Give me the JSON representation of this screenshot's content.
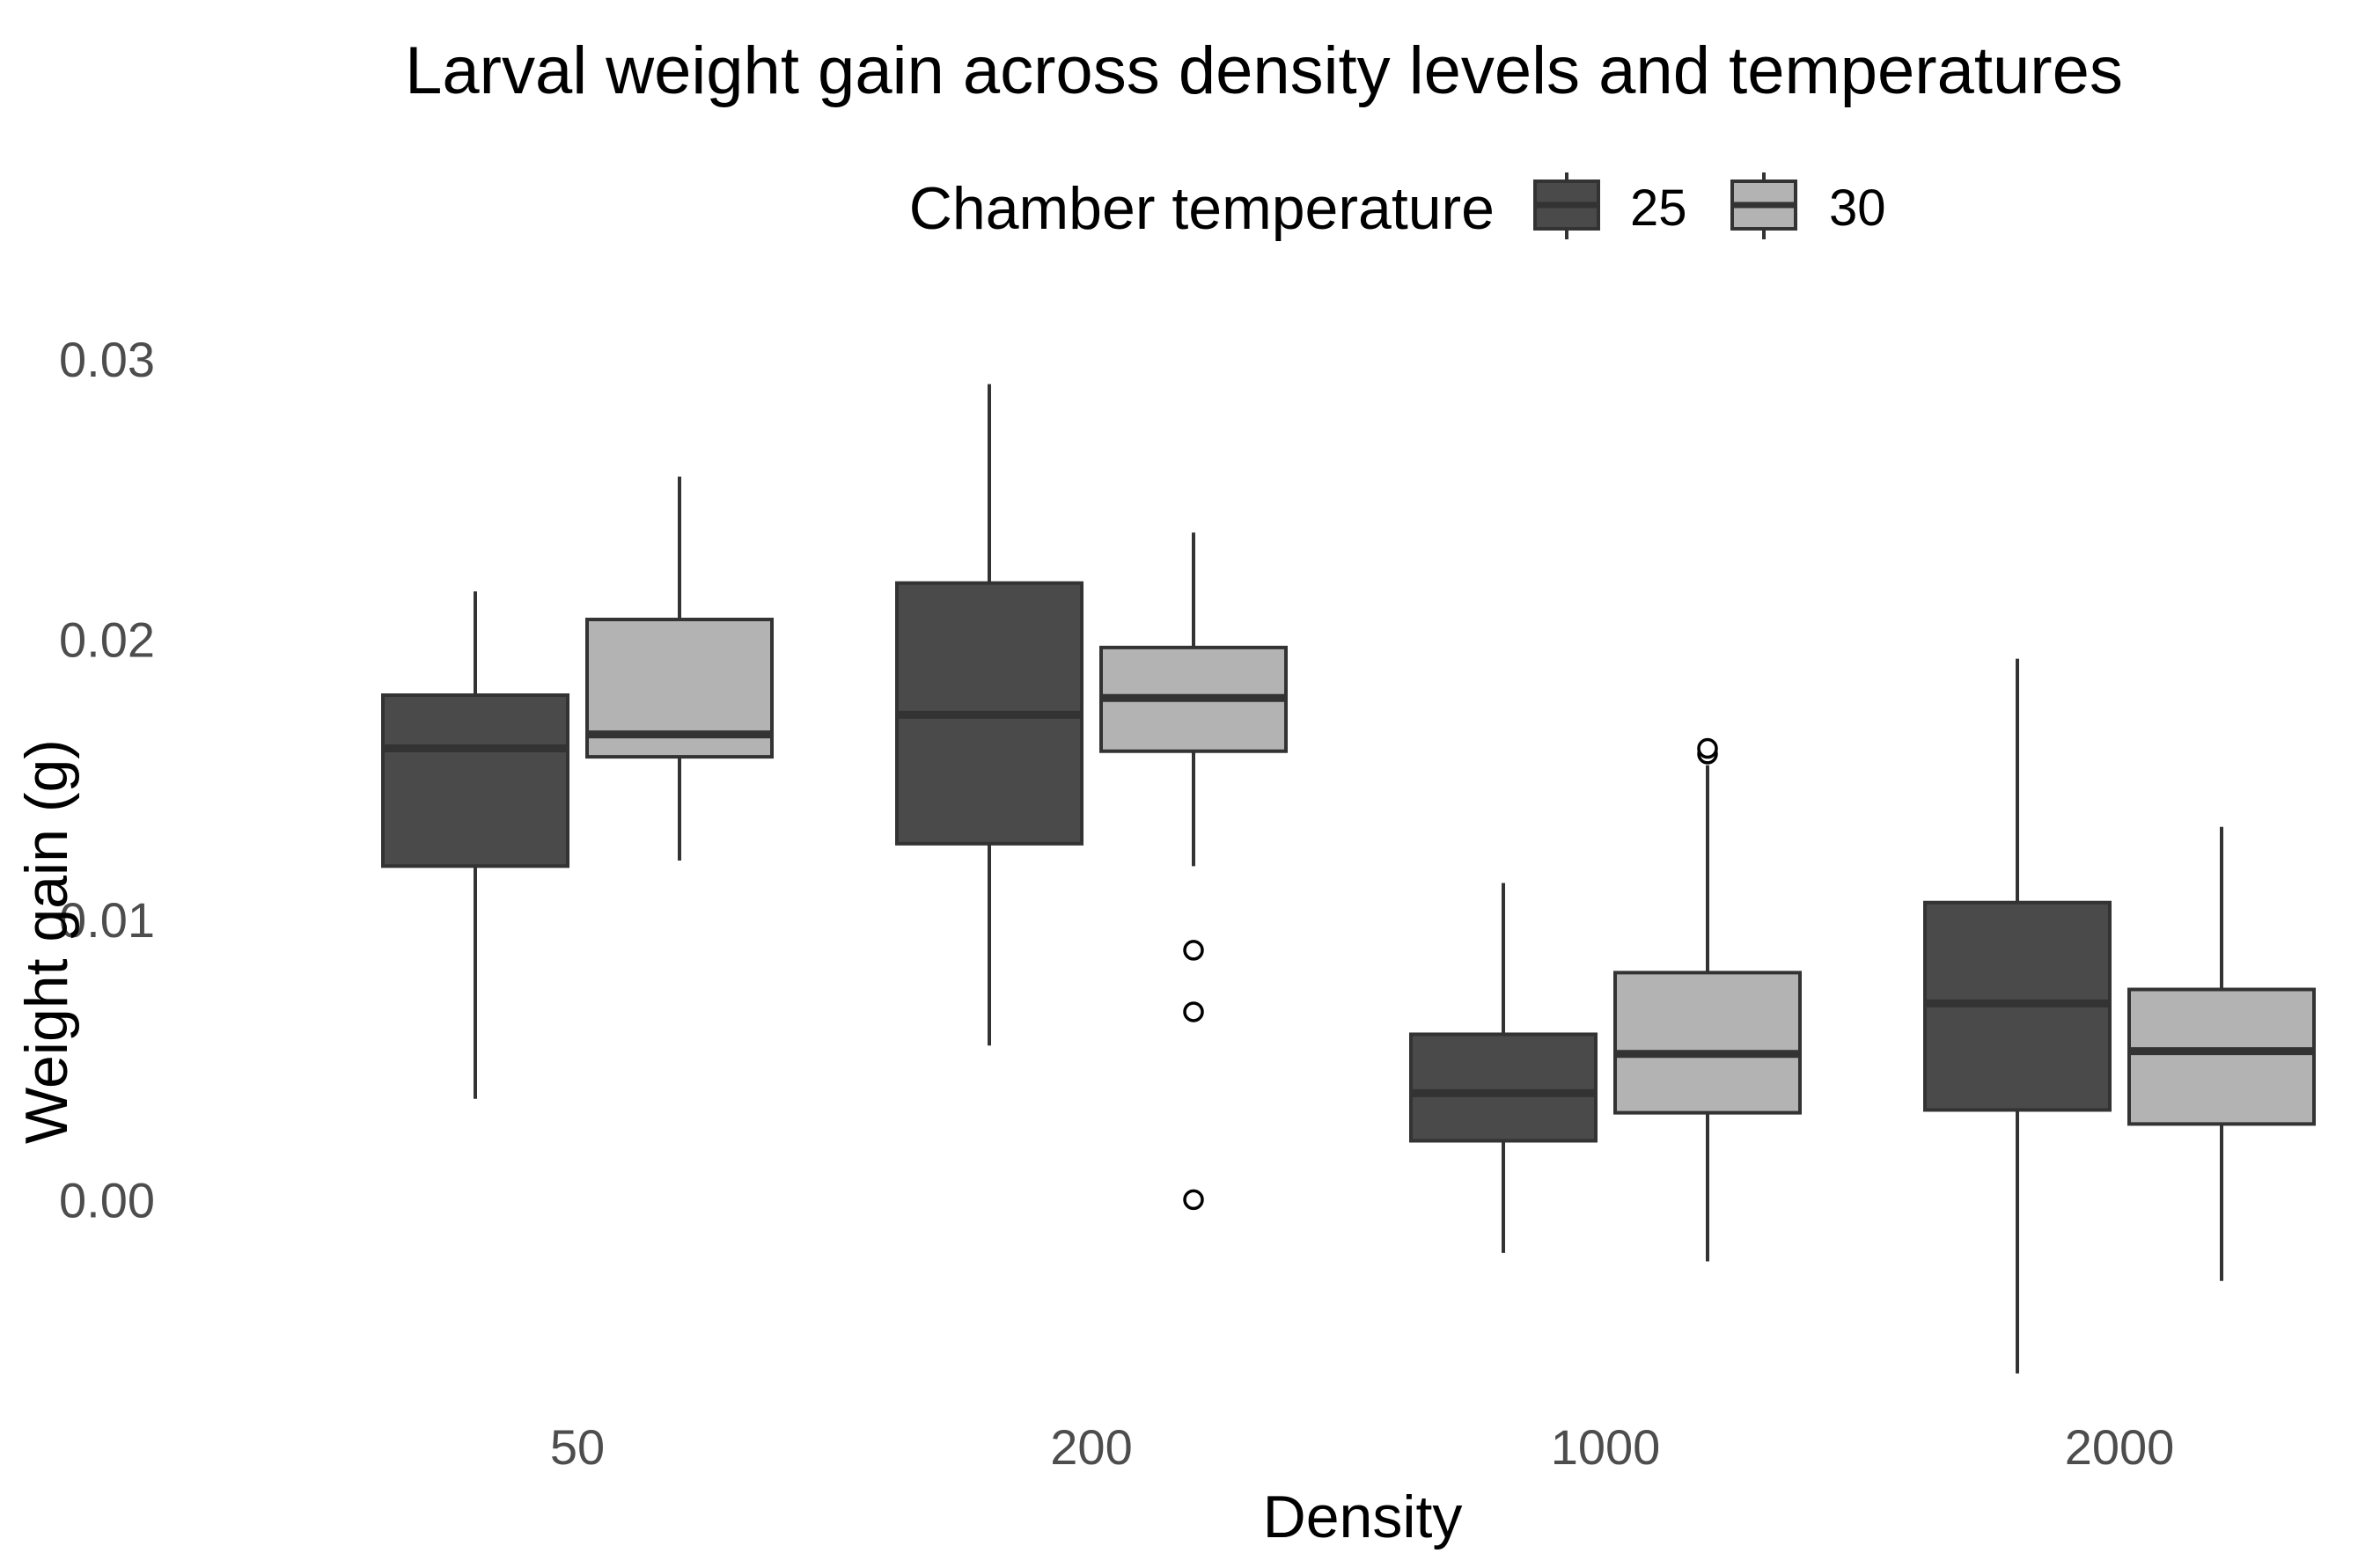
{
  "chart_data": {
    "type": "boxplot",
    "title": "Larval weight gain across density levels and temperatures",
    "xlabel": "Density",
    "ylabel": "Weight gain (g)",
    "ylim": [
      -0.0068,
      0.0315
    ],
    "yticks": [
      0.0,
      0.01,
      0.02,
      0.03
    ],
    "ytick_labels": [
      "0.00",
      "0.01",
      "0.02",
      "0.03"
    ],
    "categories": [
      "50",
      "200",
      "1000",
      "2000"
    ],
    "grid": false,
    "legend": {
      "title": "Chamber temperature",
      "position": "top",
      "entries": [
        {
          "label": "25",
          "color": "#4a4a4a"
        },
        {
          "label": "30",
          "color": "#b3b3b3"
        }
      ]
    },
    "series": [
      {
        "name": "25",
        "color": "#4a4a4a",
        "boxes": [
          {
            "category": "50",
            "whisker_low": 0.0036,
            "q1": 0.0119,
            "median": 0.0161,
            "q3": 0.018,
            "whisker_high": 0.0217,
            "outliers": []
          },
          {
            "category": "200",
            "whisker_low": 0.0055,
            "q1": 0.0127,
            "median": 0.0173,
            "q3": 0.022,
            "whisker_high": 0.0291,
            "outliers": []
          },
          {
            "category": "1000",
            "whisker_low": -0.0019,
            "q1": 0.0021,
            "median": 0.0038,
            "q3": 0.0059,
            "whisker_high": 0.0113,
            "outliers": []
          },
          {
            "category": "2000",
            "whisker_low": -0.0062,
            "q1": 0.0032,
            "median": 0.007,
            "q3": 0.0106,
            "whisker_high": 0.0193,
            "outliers": []
          }
        ]
      },
      {
        "name": "30",
        "color": "#b3b3b3",
        "boxes": [
          {
            "category": "50",
            "whisker_low": 0.0121,
            "q1": 0.0158,
            "median": 0.0166,
            "q3": 0.0207,
            "whisker_high": 0.0258,
            "outliers": []
          },
          {
            "category": "200",
            "whisker_low": 0.0119,
            "q1": 0.016,
            "median": 0.0179,
            "q3": 0.0197,
            "whisker_high": 0.0238,
            "outliers": [
              0.0089,
              0.0067,
              0.0
            ]
          },
          {
            "category": "1000",
            "whisker_low": -0.0022,
            "q1": 0.0031,
            "median": 0.0052,
            "q3": 0.0081,
            "whisker_high": 0.0155,
            "outliers": [
              0.0159,
              0.0161
            ]
          },
          {
            "category": "2000",
            "whisker_low": -0.0029,
            "q1": 0.0027,
            "median": 0.0053,
            "q3": 0.0075,
            "whisker_high": 0.0133,
            "outliers": []
          }
        ]
      }
    ]
  }
}
